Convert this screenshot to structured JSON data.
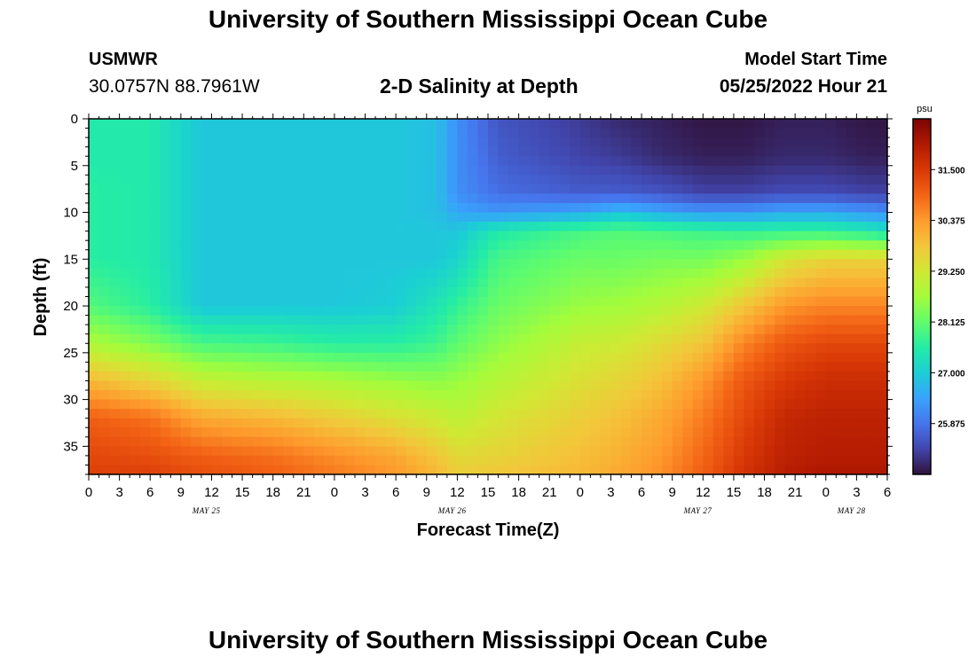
{
  "header": {
    "title": "University of Southern Mississippi Ocean Cube",
    "station": "USMWR",
    "coords": "30.0757N  88.7961W",
    "plot_title": "2-D Salinity at Depth",
    "start_label": "Model Start Time",
    "start_value": "05/25/2022 Hour 21"
  },
  "footer": {
    "title": "University of Southern Mississippi Ocean Cube"
  },
  "chart_data": {
    "type": "heatmap",
    "xlabel": "Forecast Time(Z)",
    "ylabel": "Depth (ft)",
    "x_tick_labels": [
      "0",
      "3",
      "6",
      "9",
      "12",
      "15",
      "18",
      "21",
      "0",
      "3",
      "6",
      "9",
      "12",
      "15",
      "18",
      "21",
      "0",
      "3",
      "6",
      "9",
      "12",
      "15",
      "18",
      "21",
      "0",
      "3",
      "6"
    ],
    "x_range_hours": [
      0,
      78
    ],
    "y_range_ft": [
      0,
      38
    ],
    "y_ticks": [
      0,
      5,
      10,
      15,
      20,
      25,
      30,
      35
    ],
    "y_reversed": true,
    "date_labels": [
      {
        "text": "MAY 25",
        "hour": 11.5
      },
      {
        "text": "MAY 26",
        "hour": 35.5
      },
      {
        "text": "MAY 27",
        "hour": 59.5
      },
      {
        "text": "MAY 28",
        "hour": 74.5
      }
    ],
    "colorbar": {
      "unit": "psu",
      "range": [
        24.75,
        32.625
      ],
      "ticks": [
        "31.500",
        "30.375",
        "29.250",
        "28.125",
        "27.000",
        "25.875"
      ],
      "colors": [
        "#30123b",
        "#4145ab",
        "#4675ed",
        "#39a2fc",
        "#1bcfd4",
        "#24eca6",
        "#61fc6c",
        "#a4fc3b",
        "#d1e834",
        "#f3c63a",
        "#fe9b2d",
        "#f36315",
        "#d93806",
        "#b11901",
        "#7a0403"
      ]
    },
    "grid": {
      "times": [
        0,
        6,
        11,
        18,
        24,
        30,
        34,
        36,
        40,
        48,
        52,
        56,
        60,
        64,
        68,
        72,
        76,
        78
      ],
      "depths": [
        0,
        4,
        8,
        10,
        12,
        15,
        20,
        24,
        28,
        32,
        36,
        38
      ],
      "salinity": [
        [
          27.5,
          27.5,
          26.9,
          26.9,
          26.9,
          26.9,
          26.8,
          26.2,
          25.5,
          25.2,
          25.0,
          24.9,
          24.8,
          24.8,
          24.9,
          24.9,
          24.8,
          24.8
        ],
        [
          27.5,
          27.5,
          26.9,
          26.9,
          26.9,
          26.9,
          26.8,
          26.2,
          25.6,
          25.3,
          25.2,
          25.0,
          24.9,
          24.9,
          25.0,
          25.0,
          24.9,
          24.9
        ],
        [
          27.6,
          27.5,
          26.9,
          26.9,
          26.9,
          26.9,
          26.8,
          26.2,
          25.8,
          25.6,
          25.6,
          25.5,
          25.3,
          25.3,
          25.4,
          25.4,
          25.3,
          25.3
        ],
        [
          27.6,
          27.5,
          26.9,
          26.9,
          26.9,
          26.9,
          26.8,
          26.5,
          26.3,
          26.5,
          26.8,
          26.5,
          26.3,
          26.3,
          26.5,
          26.5,
          26.3,
          26.2
        ],
        [
          27.6,
          27.5,
          26.9,
          26.9,
          26.9,
          26.9,
          26.9,
          26.9,
          27.5,
          27.9,
          28.0,
          27.9,
          27.8,
          27.7,
          27.7,
          27.7,
          27.5,
          27.3
        ],
        [
          27.6,
          27.5,
          26.9,
          26.9,
          26.9,
          26.9,
          26.9,
          27.1,
          27.9,
          28.2,
          28.2,
          28.3,
          28.3,
          28.6,
          29.3,
          29.6,
          29.6,
          29.6
        ],
        [
          28.0,
          27.6,
          26.9,
          26.9,
          26.9,
          27.0,
          27.4,
          27.7,
          28.2,
          28.6,
          28.7,
          28.9,
          29.2,
          29.8,
          30.4,
          30.6,
          30.6,
          30.6
        ],
        [
          28.8,
          28.4,
          27.9,
          27.8,
          27.6,
          27.6,
          27.8,
          28.1,
          28.5,
          29.1,
          29.2,
          29.5,
          29.8,
          30.6,
          31.1,
          31.3,
          31.3,
          31.3
        ],
        [
          30.0,
          29.6,
          29.1,
          28.9,
          28.8,
          28.6,
          28.5,
          28.6,
          28.9,
          29.4,
          29.6,
          29.9,
          30.4,
          31.1,
          31.5,
          31.7,
          31.7,
          31.7
        ],
        [
          31.0,
          30.8,
          30.2,
          30.0,
          29.7,
          29.4,
          29.2,
          29.0,
          29.3,
          29.7,
          29.9,
          30.2,
          30.7,
          31.3,
          31.8,
          31.9,
          31.9,
          31.9
        ],
        [
          31.3,
          31.2,
          31.0,
          30.8,
          30.5,
          30.2,
          29.8,
          29.5,
          29.6,
          29.9,
          30.1,
          30.4,
          30.9,
          31.5,
          31.9,
          32.0,
          32.0,
          32.0
        ],
        [
          31.4,
          31.4,
          31.2,
          31.0,
          30.7,
          30.4,
          30.0,
          29.7,
          29.8,
          30.0,
          30.2,
          30.5,
          31.0,
          31.6,
          32.0,
          32.1,
          32.1,
          32.1
        ]
      ]
    }
  }
}
